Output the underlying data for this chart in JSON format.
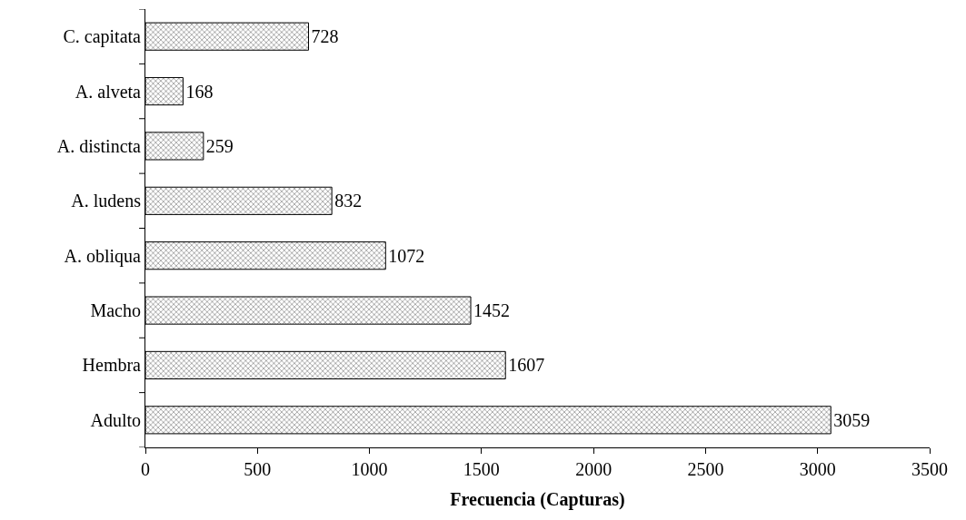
{
  "chart_data": {
    "type": "bar",
    "orientation": "horizontal",
    "xlabel": "Frecuencia (Capturas)",
    "categories": [
      "C. capitata",
      "A. alveta",
      "A. distincta",
      "A. ludens",
      "A. obliqua",
      "Macho",
      "Hembra",
      "Adulto"
    ],
    "values": [
      728,
      168,
      259,
      832,
      1072,
      1452,
      1607,
      3059
    ],
    "color": "#000000",
    "xlim": [
      0,
      3500
    ],
    "xticks": [
      0,
      500,
      1000,
      1500,
      2000,
      2500,
      3000,
      3500
    ],
    "data_labels": true
  }
}
